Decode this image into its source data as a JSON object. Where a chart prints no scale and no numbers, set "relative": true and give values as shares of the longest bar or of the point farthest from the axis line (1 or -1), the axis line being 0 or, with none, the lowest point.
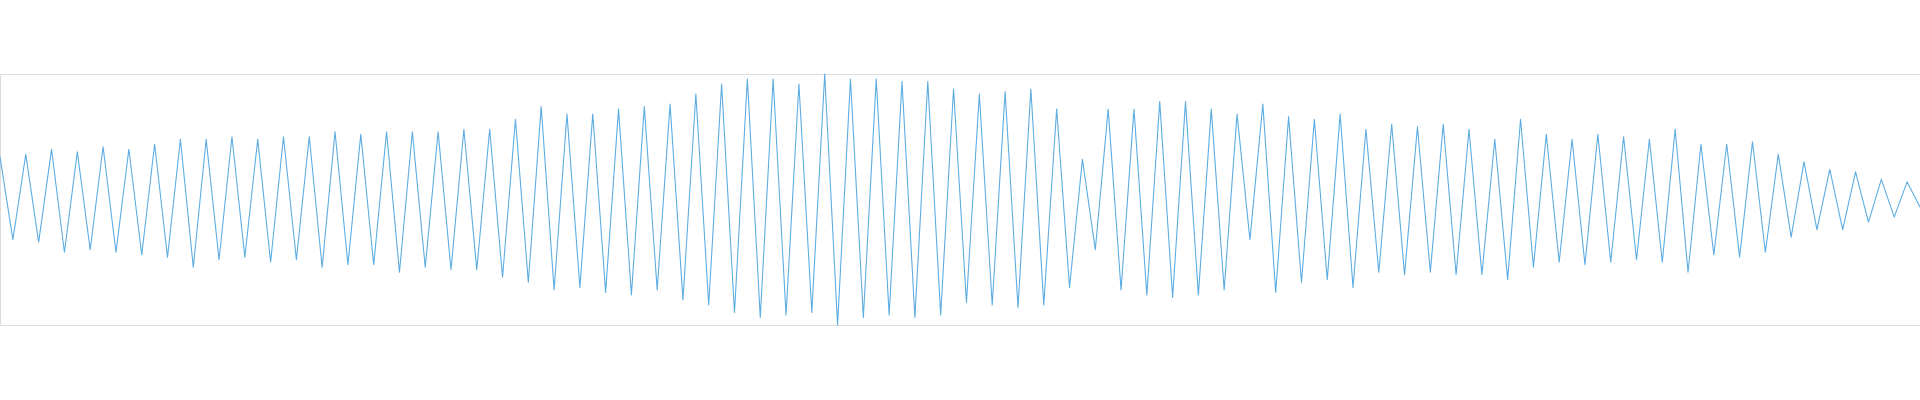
{
  "chart_data": {
    "type": "line",
    "relative": true,
    "categories": [
      null,
      null,
      null,
      null,
      null,
      null,
      null,
      null,
      null,
      null,
      null,
      null,
      null,
      null,
      null,
      null,
      null,
      null,
      null,
      null,
      null,
      null,
      null,
      null,
      null,
      null,
      null,
      null,
      null,
      null,
      null,
      null,
      null,
      null,
      null,
      null,
      null,
      null,
      null,
      null,
      null,
      null,
      null,
      null,
      null,
      null,
      null,
      null,
      null,
      null,
      null,
      null,
      null,
      null,
      null,
      null,
      null,
      null,
      null,
      null,
      null,
      null,
      null,
      null,
      null,
      null,
      null,
      null,
      null,
      null,
      null,
      null,
      null,
      null,
      null,
      null,
      null,
      null,
      null,
      null,
      null,
      null,
      null,
      null,
      null,
      null,
      null,
      null,
      null,
      null,
      null,
      null,
      null,
      null,
      null,
      null,
      null,
      null,
      null,
      null,
      null,
      null,
      null,
      null,
      null,
      null,
      null,
      null,
      null,
      null,
      null,
      null,
      null,
      null,
      null,
      null,
      null,
      null,
      null,
      null,
      null,
      null,
      null,
      null,
      null,
      null,
      null,
      null,
      null,
      null,
      null,
      null,
      null,
      null,
      null,
      null,
      null,
      null,
      null,
      null,
      null,
      null,
      null,
      null,
      null,
      null,
      null,
      null,
      null,
      null
    ],
    "series": [
      {
        "color": "#5dade2",
        "values": [
          0.67,
          0.34,
          0.68,
          0.33,
          0.7,
          0.29,
          0.69,
          0.3,
          0.71,
          0.29,
          0.7,
          0.28,
          0.72,
          0.27,
          0.74,
          0.23,
          0.74,
          0.26,
          0.75,
          0.27,
          0.74,
          0.25,
          0.75,
          0.26,
          0.75,
          0.23,
          0.77,
          0.24,
          0.76,
          0.24,
          0.77,
          0.21,
          0.77,
          0.23,
          0.77,
          0.22,
          0.78,
          0.22,
          0.78,
          0.19,
          0.82,
          0.17,
          0.87,
          0.14,
          0.84,
          0.15,
          0.84,
          0.13,
          0.86,
          0.12,
          0.87,
          0.14,
          0.88,
          0.1,
          0.92,
          0.08,
          0.96,
          0.05,
          0.98,
          0.03,
          0.98,
          0.04,
          0.96,
          0.05,
          1.0,
          0.0,
          0.98,
          0.03,
          0.98,
          0.04,
          0.97,
          0.03,
          0.97,
          0.04,
          0.94,
          0.09,
          0.92,
          0.08,
          0.93,
          0.07,
          0.94,
          0.08,
          0.86,
          0.15,
          0.66,
          0.3,
          0.86,
          0.14,
          0.86,
          0.12,
          0.89,
          0.11,
          0.89,
          0.12,
          0.86,
          0.14,
          0.84,
          0.34,
          0.88,
          0.13,
          0.83,
          0.17,
          0.82,
          0.18,
          0.84,
          0.15,
          0.78,
          0.21,
          0.8,
          0.2,
          0.79,
          0.21,
          0.8,
          0.2,
          0.78,
          0.2,
          0.74,
          0.18,
          0.82,
          0.23,
          0.76,
          0.25,
          0.74,
          0.24,
          0.76,
          0.25,
          0.75,
          0.26,
          0.74,
          0.25,
          0.78,
          0.21,
          0.72,
          0.28,
          0.72,
          0.27,
          0.73,
          0.29,
          0.68,
          0.35,
          0.65,
          0.38,
          0.62,
          0.38,
          0.61,
          0.41,
          0.58,
          0.43,
          0.57,
          0.47
        ]
      }
    ]
  }
}
